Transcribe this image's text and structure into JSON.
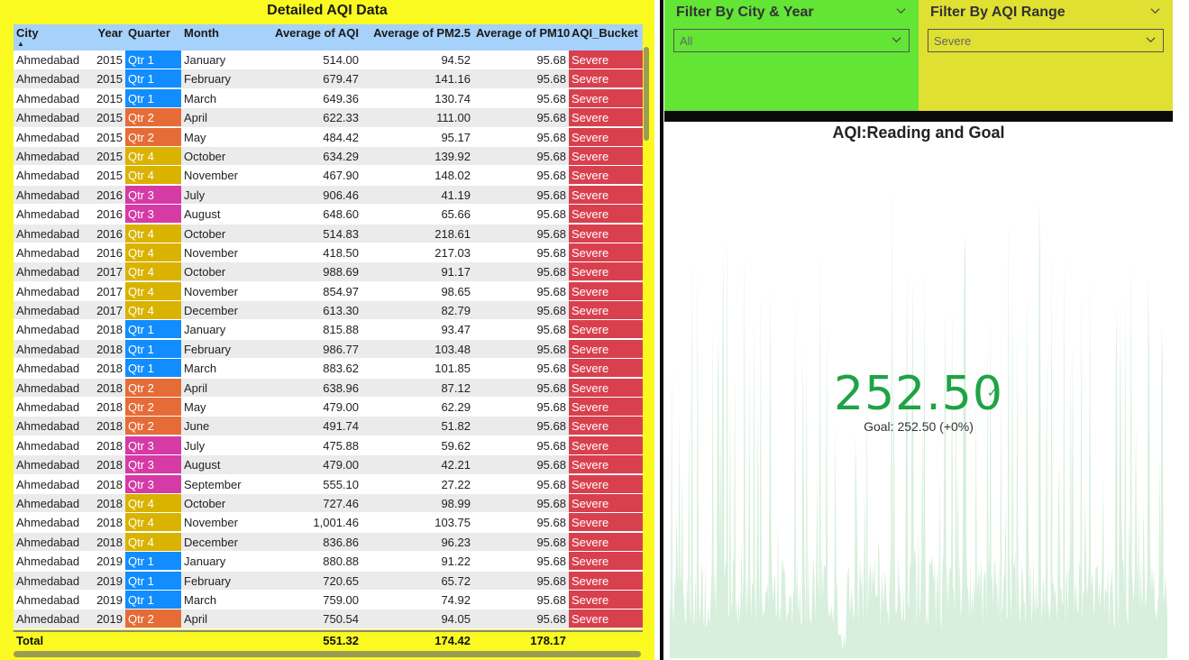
{
  "table": {
    "title": "Detailed AQI Data",
    "columns": [
      "City",
      "Year",
      "Quarter",
      "Month",
      "Average of AQI",
      "Average of PM2.5",
      "Average of PM10",
      "AQI_Bucket"
    ],
    "rows": [
      [
        "Ahmedabad",
        "2015",
        "Qtr 1",
        "January",
        "514.00",
        "94.52",
        "95.68",
        "Severe"
      ],
      [
        "Ahmedabad",
        "2015",
        "Qtr 1",
        "February",
        "679.47",
        "141.16",
        "95.68",
        "Severe"
      ],
      [
        "Ahmedabad",
        "2015",
        "Qtr 1",
        "March",
        "649.36",
        "130.74",
        "95.68",
        "Severe"
      ],
      [
        "Ahmedabad",
        "2015",
        "Qtr 2",
        "April",
        "622.33",
        "111.00",
        "95.68",
        "Severe"
      ],
      [
        "Ahmedabad",
        "2015",
        "Qtr 2",
        "May",
        "484.42",
        "95.17",
        "95.68",
        "Severe"
      ],
      [
        "Ahmedabad",
        "2015",
        "Qtr 4",
        "October",
        "634.29",
        "139.92",
        "95.68",
        "Severe"
      ],
      [
        "Ahmedabad",
        "2015",
        "Qtr 4",
        "November",
        "467.90",
        "148.02",
        "95.68",
        "Severe"
      ],
      [
        "Ahmedabad",
        "2016",
        "Qtr 3",
        "July",
        "906.46",
        "41.19",
        "95.68",
        "Severe"
      ],
      [
        "Ahmedabad",
        "2016",
        "Qtr 3",
        "August",
        "648.60",
        "65.66",
        "95.68",
        "Severe"
      ],
      [
        "Ahmedabad",
        "2016",
        "Qtr 4",
        "October",
        "514.83",
        "218.61",
        "95.68",
        "Severe"
      ],
      [
        "Ahmedabad",
        "2016",
        "Qtr 4",
        "November",
        "418.50",
        "217.03",
        "95.68",
        "Severe"
      ],
      [
        "Ahmedabad",
        "2017",
        "Qtr 4",
        "October",
        "988.69",
        "91.17",
        "95.68",
        "Severe"
      ],
      [
        "Ahmedabad",
        "2017",
        "Qtr 4",
        "November",
        "854.97",
        "98.65",
        "95.68",
        "Severe"
      ],
      [
        "Ahmedabad",
        "2017",
        "Qtr 4",
        "December",
        "613.30",
        "82.79",
        "95.68",
        "Severe"
      ],
      [
        "Ahmedabad",
        "2018",
        "Qtr 1",
        "January",
        "815.88",
        "93.47",
        "95.68",
        "Severe"
      ],
      [
        "Ahmedabad",
        "2018",
        "Qtr 1",
        "February",
        "986.77",
        "103.48",
        "95.68",
        "Severe"
      ],
      [
        "Ahmedabad",
        "2018",
        "Qtr 1",
        "March",
        "883.62",
        "101.85",
        "95.68",
        "Severe"
      ],
      [
        "Ahmedabad",
        "2018",
        "Qtr 2",
        "April",
        "638.96",
        "87.12",
        "95.68",
        "Severe"
      ],
      [
        "Ahmedabad",
        "2018",
        "Qtr 2",
        "May",
        "479.00",
        "62.29",
        "95.68",
        "Severe"
      ],
      [
        "Ahmedabad",
        "2018",
        "Qtr 2",
        "June",
        "491.74",
        "51.82",
        "95.68",
        "Severe"
      ],
      [
        "Ahmedabad",
        "2018",
        "Qtr 3",
        "July",
        "475.88",
        "59.62",
        "95.68",
        "Severe"
      ],
      [
        "Ahmedabad",
        "2018",
        "Qtr 3",
        "August",
        "479.00",
        "42.21",
        "95.68",
        "Severe"
      ],
      [
        "Ahmedabad",
        "2018",
        "Qtr 3",
        "September",
        "555.10",
        "27.22",
        "95.68",
        "Severe"
      ],
      [
        "Ahmedabad",
        "2018",
        "Qtr 4",
        "October",
        "727.46",
        "98.99",
        "95.68",
        "Severe"
      ],
      [
        "Ahmedabad",
        "2018",
        "Qtr 4",
        "November",
        "1,001.46",
        "103.75",
        "95.68",
        "Severe"
      ],
      [
        "Ahmedabad",
        "2018",
        "Qtr 4",
        "December",
        "836.86",
        "96.23",
        "95.68",
        "Severe"
      ],
      [
        "Ahmedabad",
        "2019",
        "Qtr 1",
        "January",
        "880.88",
        "91.22",
        "95.68",
        "Severe"
      ],
      [
        "Ahmedabad",
        "2019",
        "Qtr 1",
        "February",
        "720.65",
        "65.72",
        "95.68",
        "Severe"
      ],
      [
        "Ahmedabad",
        "2019",
        "Qtr 1",
        "March",
        "759.00",
        "74.92",
        "95.68",
        "Severe"
      ],
      [
        "Ahmedabad",
        "2019",
        "Qtr 2",
        "April",
        "750.54",
        "94.05",
        "95.68",
        "Severe"
      ]
    ],
    "total": {
      "label": "Total",
      "aqi": "551.32",
      "pm25": "174.42",
      "pm10": "178.17"
    }
  },
  "quarter_colors": {
    "Qtr 1": "#118dff",
    "Qtr 2": "#e66c37",
    "Qtr 3": "#d53aa5",
    "Qtr 4": "#d9b300"
  },
  "bucket_color": "#d9404e",
  "sort_icon": "sort-ascending-icon",
  "filters": {
    "city_year": {
      "title": "Filter By City & Year",
      "value": "All"
    },
    "aqi_range": {
      "title": "Filter By AQI Range",
      "value": "Severe"
    }
  },
  "kpi": {
    "title": "AQI:Reading and Goal",
    "value": "252.50",
    "goal_text": "Goal: 252.50 (+0%)",
    "status_icon": "checkmark-icon",
    "color": "#1ea345"
  }
}
